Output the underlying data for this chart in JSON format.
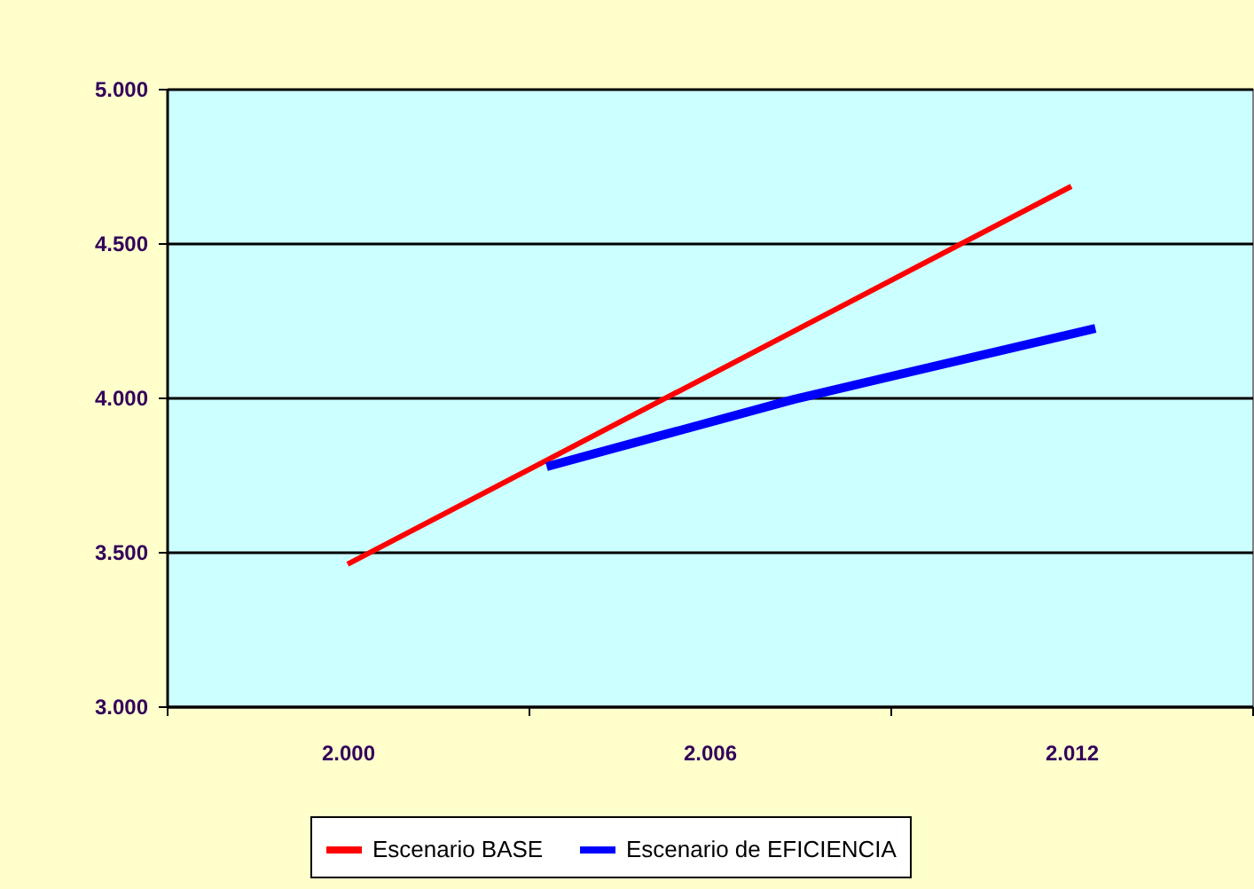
{
  "chart_data": {
    "type": "line",
    "xlim": [
      1997,
      2015
    ],
    "xticks": [
      {
        "value": 1997,
        "label": null
      },
      {
        "value": 2000,
        "label": "2.000"
      },
      {
        "value": 2003,
        "label": null
      },
      {
        "value": 2006,
        "label": "2.006"
      },
      {
        "value": 2009,
        "label": null
      },
      {
        "value": 2012,
        "label": "2.012"
      },
      {
        "value": 2015,
        "label": null
      }
    ],
    "ylim": [
      3000,
      5000
    ],
    "yticks": [
      {
        "value": 3000,
        "label": "3.000"
      },
      {
        "value": 3500,
        "label": "3.500"
      },
      {
        "value": 4000,
        "label": "4.000"
      },
      {
        "value": 4500,
        "label": "4.500"
      },
      {
        "value": 5000,
        "label": "5.000"
      }
    ],
    "grid": "y",
    "legend": "bottom",
    "marker": "none",
    "line_style": "solid",
    "series": [
      {
        "name": "Escenario BASE",
        "color": "#ff0000",
        "x": [
          2000,
          2012
        ],
        "values": [
          3460,
          4684
        ]
      },
      {
        "name": "Escenario de EFICIENCIA",
        "color": "#0000ff",
        "x": [
          2003.3,
          2007.4,
          2012.4
        ],
        "values": [
          3776,
          3994,
          4224
        ]
      }
    ]
  }
}
